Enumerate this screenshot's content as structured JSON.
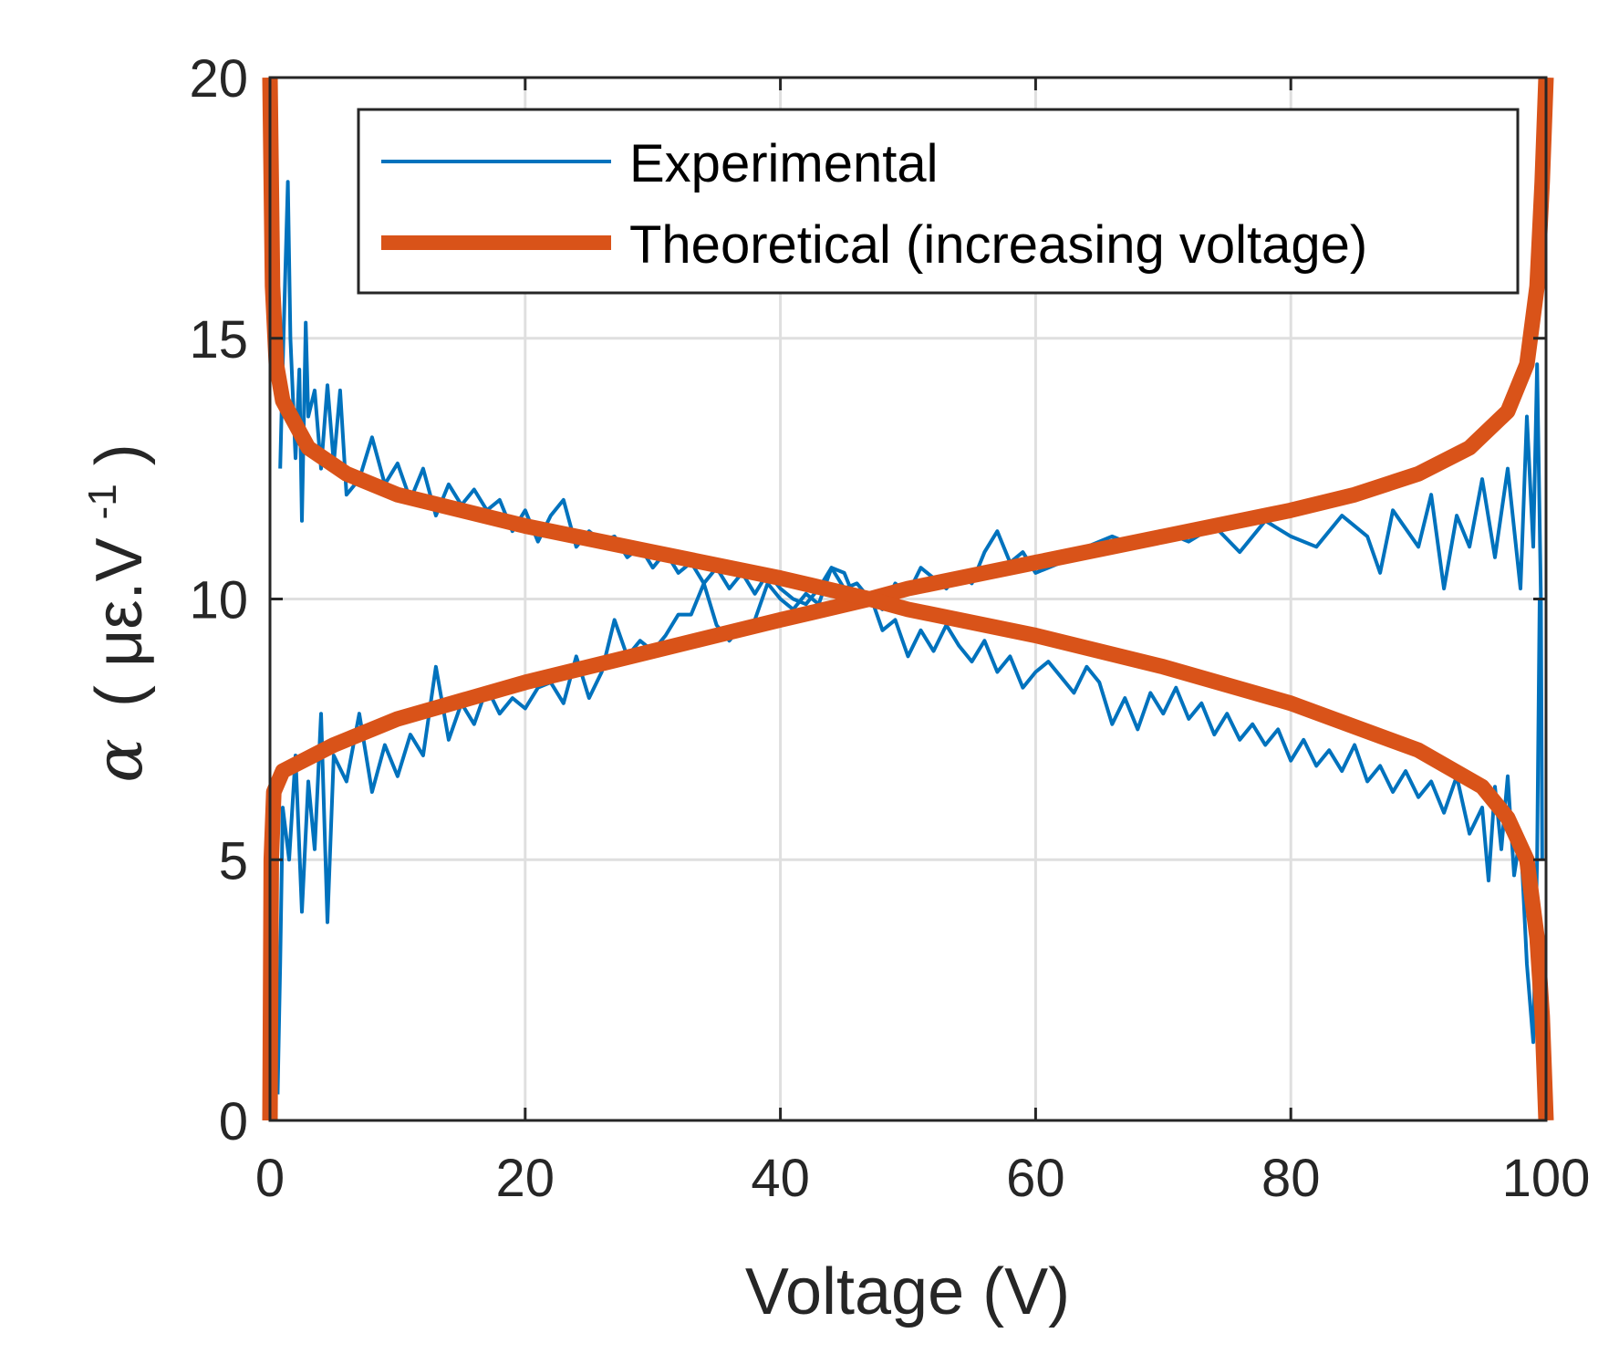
{
  "chart_data": {
    "type": "line",
    "title": "",
    "xlabel": "Voltage (V)",
    "ylabel": "α (με.V-1)",
    "ylabel_parts": {
      "symbol": "α",
      "open": "(",
      "unit": "με.V",
      "exponent": "-1",
      "close": ")"
    },
    "xlim": [
      0,
      100
    ],
    "ylim": [
      0,
      20
    ],
    "xticks": [
      "0",
      "20",
      "40",
      "60",
      "80",
      "100"
    ],
    "xtick_values": [
      0,
      20,
      40,
      60,
      80,
      100
    ],
    "yticks": [
      "0",
      "5",
      "10",
      "15",
      "20"
    ],
    "ytick_values": [
      0,
      5,
      10,
      15,
      20
    ],
    "grid": true,
    "legend_position": "top-right",
    "colors": {
      "experimental": "#0072BD",
      "theoretical": "#D95319",
      "grid": "#dfdfdf",
      "axis": "#262626"
    },
    "series": [
      {
        "name": "Experimental",
        "legend": "Experimental",
        "branches": [
          {
            "x": [
              0.6,
              0.8,
              1,
              1.5,
              2,
              2.5,
              3,
              3.5,
              4,
              4.5,
              5,
              6,
              7,
              8,
              9,
              10,
              11,
              12,
              13,
              14,
              15,
              16,
              17,
              18,
              19,
              20,
              21,
              22,
              23,
              24,
              25,
              26,
              27,
              28,
              29,
              30,
              31,
              32,
              33,
              34,
              35,
              36,
              37,
              38,
              39,
              40,
              41,
              42,
              43,
              44,
              45,
              46,
              47,
              48,
              49,
              50,
              51,
              52,
              53,
              54,
              55,
              56,
              57,
              58,
              59,
              60,
              62,
              64,
              66,
              68,
              70,
              72,
              74,
              76,
              78,
              80,
              82,
              84,
              86,
              87,
              88,
              90,
              91,
              92,
              93,
              94,
              95,
              96,
              97,
              98,
              98.5,
              99,
              99.3,
              99.6,
              99.7
            ],
            "y": [
              0.5,
              3,
              6,
              5,
              7,
              4,
              6.5,
              5.2,
              7.8,
              3.8,
              7,
              6.5,
              7.8,
              6.3,
              7.2,
              6.6,
              7.4,
              7.0,
              8.7,
              7.3,
              8.0,
              7.6,
              8.3,
              7.8,
              8.1,
              7.9,
              8.3,
              8.4,
              8.0,
              8.9,
              8.1,
              8.6,
              9.6,
              8.9,
              9.2,
              9.0,
              9.3,
              9.7,
              9.7,
              10.3,
              9.5,
              9.2,
              9.5,
              9.6,
              10.3,
              10.0,
              9.8,
              10.1,
              9.9,
              10.6,
              10.2,
              10.3,
              10.0,
              9.8,
              10.3,
              10.1,
              10.6,
              10.4,
              10.2,
              10.5,
              10.3,
              10.9,
              11.3,
              10.7,
              10.9,
              10.5,
              10.7,
              11.0,
              11.2,
              11.0,
              11.3,
              11.1,
              11.4,
              10.9,
              11.5,
              11.2,
              11.0,
              11.6,
              11.2,
              10.5,
              11.7,
              11.0,
              12.0,
              10.2,
              11.6,
              11.0,
              12.3,
              10.8,
              12.5,
              10.2,
              13.5,
              11.0,
              14.5,
              10,
              5
            ]
          },
          {
            "x": [
              0.8,
              1.0,
              1.4,
              1.6,
              2,
              2.3,
              2.5,
              2.8,
              3,
              3.5,
              4,
              4.5,
              5,
              5.5,
              6,
              7,
              8,
              9,
              10,
              11,
              12,
              13,
              14,
              15,
              16,
              17,
              18,
              19,
              20,
              21,
              22,
              23,
              24,
              25,
              26,
              27,
              28,
              29,
              30,
              31,
              32,
              33,
              34,
              35,
              36,
              37,
              38,
              39,
              40,
              41,
              42,
              43,
              44,
              45,
              46,
              47,
              48,
              49,
              50,
              51,
              52,
              53,
              54,
              55,
              56,
              57,
              58,
              59,
              60,
              61,
              62,
              63,
              64,
              65,
              66,
              67,
              68,
              69,
              70,
              71,
              72,
              73,
              74,
              75,
              76,
              77,
              78,
              79,
              80,
              81,
              82,
              83,
              84,
              85,
              86,
              87,
              88,
              89,
              90,
              91,
              92,
              93,
              94,
              95,
              95.5,
              96,
              96.5,
              97,
              97.5,
              98,
              98.5,
              99,
              99.3,
              99.5
            ],
            "y": [
              12.5,
              14.5,
              18,
              15,
              12.7,
              14.4,
              11.5,
              15.3,
              13.5,
              14,
              12.5,
              14.1,
              12.6,
              14,
              12,
              12.3,
              13.1,
              12.2,
              12.6,
              11.9,
              12.5,
              11.6,
              12.2,
              11.8,
              12.1,
              11.7,
              11.9,
              11.3,
              11.7,
              11.1,
              11.6,
              11.9,
              11.0,
              11.3,
              11.1,
              11.2,
              10.8,
              11.0,
              10.6,
              10.9,
              10.5,
              10.7,
              10.3,
              10.6,
              10.2,
              10.5,
              10.1,
              10.5,
              10.2,
              10.0,
              9.9,
              10.2,
              10.6,
              10.5,
              9.9,
              10.1,
              9.4,
              9.6,
              8.9,
              9.4,
              9.0,
              9.5,
              9.1,
              8.8,
              9.2,
              8.6,
              8.9,
              8.3,
              8.6,
              8.8,
              8.5,
              8.2,
              8.7,
              8.4,
              7.6,
              8.1,
              7.5,
              8.2,
              7.8,
              8.3,
              7.7,
              8.0,
              7.4,
              7.8,
              7.3,
              7.6,
              7.2,
              7.5,
              6.9,
              7.3,
              6.8,
              7.1,
              6.7,
              7.2,
              6.5,
              6.8,
              6.3,
              6.7,
              6.2,
              6.5,
              5.9,
              6.6,
              5.5,
              6.0,
              4.6,
              6.4,
              5.2,
              6.6,
              4.7,
              5.5,
              3.0,
              1.5,
              5,
              10
            ]
          }
        ]
      },
      {
        "name": "Theoretical (increasing voltage)",
        "legend": "Theoretical (increasing voltage)",
        "branches": [
          {
            "x": [
              0,
              0.1,
              0.3,
              1,
              5,
              10,
              20,
              30,
              40,
              47,
              50,
              60,
              70,
              80,
              85,
              90,
              94,
              97,
              98.5,
              99.3,
              99.7,
              100
            ],
            "y": [
              0,
              5,
              6.3,
              6.7,
              7.2,
              7.7,
              8.4,
              9.0,
              9.6,
              10,
              10.2,
              10.7,
              11.2,
              11.7,
              12.0,
              12.4,
              12.9,
              13.6,
              14.5,
              16,
              18,
              20
            ]
          },
          {
            "x": [
              0,
              0.2,
              0.5,
              1,
              3,
              6,
              10,
              20,
              30,
              40,
              47,
              50,
              60,
              70,
              80,
              90,
              95,
              97,
              98.5,
              99.3,
              99.7,
              100
            ],
            "y": [
              20,
              16,
              14.5,
              13.8,
              12.9,
              12.4,
              12.0,
              11.4,
              10.9,
              10.4,
              10,
              9.8,
              9.3,
              8.7,
              8.0,
              7.1,
              6.4,
              5.8,
              5,
              3.5,
              2,
              0
            ]
          }
        ]
      }
    ]
  }
}
